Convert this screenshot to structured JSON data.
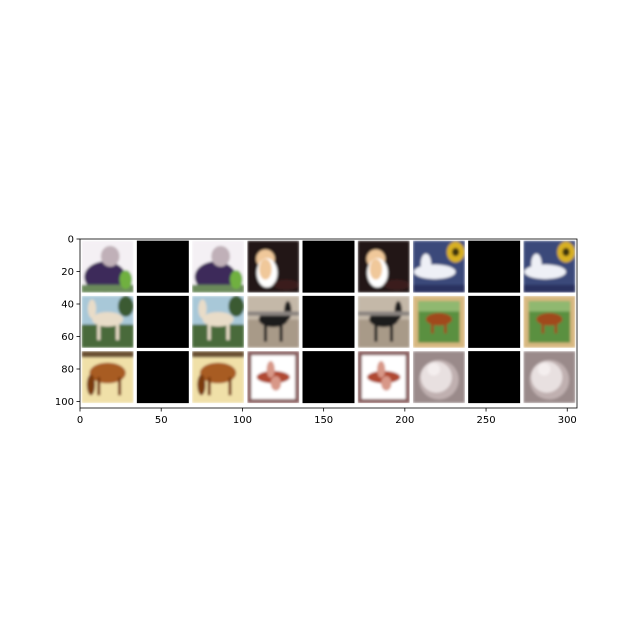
{
  "figure": {
    "x_axis": {
      "ticks": [
        "0",
        "50",
        "100",
        "150",
        "200",
        "250",
        "300"
      ],
      "values": [
        0,
        50,
        100,
        150,
        200,
        250,
        300
      ],
      "range": [
        0,
        306
      ]
    },
    "y_axis": {
      "ticks": [
        "0",
        "20",
        "40",
        "60",
        "80",
        "100"
      ],
      "values": [
        0,
        20,
        40,
        60,
        80,
        100
      ],
      "range": [
        0,
        104
      ],
      "inverted": true
    },
    "grid": {
      "rows": 3,
      "cols": 9,
      "tile_size": 32,
      "gap": 2
    }
  },
  "tiles": [
    [
      {
        "kind": "image",
        "subject": "person-and-horse-blurry",
        "colors": [
          "#f4f0f4",
          "#3e2c5a",
          "#6a8a5a",
          "#c0b0b8"
        ]
      },
      {
        "kind": "masked",
        "color": "#000000"
      },
      {
        "kind": "image",
        "subject": "person-and-horse-blurry",
        "colors": [
          "#f4f0f4",
          "#3e2c5a",
          "#6a8a5a",
          "#c0b0b8"
        ]
      },
      {
        "kind": "image",
        "subject": "orange-white-cat",
        "colors": [
          "#241414",
          "#f0c89a",
          "#ffffff",
          "#3a1e1e"
        ]
      },
      {
        "kind": "masked",
        "color": "#000000"
      },
      {
        "kind": "image",
        "subject": "orange-white-cat",
        "colors": [
          "#241414",
          "#f0c89a",
          "#ffffff",
          "#3a1e1e"
        ]
      },
      {
        "kind": "image",
        "subject": "airplane-with-emblem",
        "colors": [
          "#3a4a7a",
          "#eef0f6",
          "#d8b020",
          "#2a3060"
        ]
      },
      {
        "kind": "masked",
        "color": "#000000"
      },
      {
        "kind": "image",
        "subject": "airplane-with-emblem",
        "colors": [
          "#3a4a7a",
          "#eef0f6",
          "#d8b020",
          "#2a3060"
        ]
      }
    ],
    [
      {
        "kind": "image",
        "subject": "white-horse",
        "colors": [
          "#a8c8d8",
          "#e8dcc8",
          "#4a6a3a",
          "#6a5038"
        ]
      },
      {
        "kind": "masked",
        "color": "#000000"
      },
      {
        "kind": "image",
        "subject": "white-horse",
        "colors": [
          "#a8c8d8",
          "#e8dcc8",
          "#4a6a3a",
          "#6a5038"
        ]
      },
      {
        "kind": "image",
        "subject": "dark-horse",
        "colors": [
          "#8a8480",
          "#1e1a1e",
          "#a89a88",
          "#c4b8a8"
        ]
      },
      {
        "kind": "masked",
        "color": "#000000"
      },
      {
        "kind": "image",
        "subject": "dark-horse",
        "colors": [
          "#8a8480",
          "#1e1a1e",
          "#a89a88",
          "#c4b8a8"
        ]
      },
      {
        "kind": "image",
        "subject": "horse-painting-framed",
        "colors": [
          "#d8b880",
          "#5a9040",
          "#a0481c",
          "#f0d8a8"
        ]
      },
      {
        "kind": "masked",
        "color": "#000000"
      },
      {
        "kind": "image",
        "subject": "horse-painting-framed",
        "colors": [
          "#d8b880",
          "#5a9040",
          "#a0481c",
          "#f0d8a8"
        ]
      }
    ],
    [
      {
        "kind": "image",
        "subject": "brown-horse-grazing",
        "colors": [
          "#f0e0a8",
          "#a85c20",
          "#7a3a10",
          "#d8c890"
        ]
      },
      {
        "kind": "masked",
        "color": "#000000"
      },
      {
        "kind": "image",
        "subject": "brown-horse-grazing",
        "colors": [
          "#f0e0a8",
          "#a85c20",
          "#7a3a10",
          "#d8c890"
        ]
      },
      {
        "kind": "image",
        "subject": "red-airplane-framed",
        "colors": [
          "#ffffff",
          "#b04830",
          "#8a6060",
          "#d89888"
        ]
      },
      {
        "kind": "masked",
        "color": "#000000"
      },
      {
        "kind": "image",
        "subject": "red-airplane-framed",
        "colors": [
          "#ffffff",
          "#b04830",
          "#8a6060",
          "#d89888"
        ]
      },
      {
        "kind": "image",
        "subject": "white-fluffy-cat",
        "colors": [
          "#9a8a8a",
          "#e8e0e0",
          "#c0b0b0",
          "#7a6a6a"
        ]
      },
      {
        "kind": "masked",
        "color": "#000000"
      },
      {
        "kind": "image",
        "subject": "white-fluffy-cat",
        "colors": [
          "#9a8a8a",
          "#e8e0e0",
          "#c0b0b0",
          "#7a6a6a"
        ]
      }
    ]
  ]
}
